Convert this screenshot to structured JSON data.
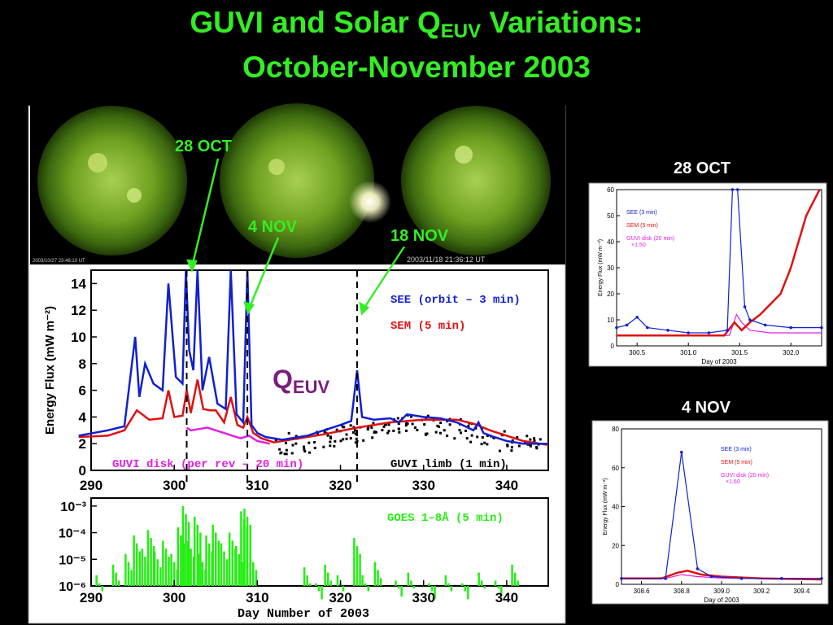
{
  "title": {
    "line1": "GUVI and Solar Q",
    "sub": "EUV",
    "line1_end": " Variations:",
    "line2": "October-November 2003"
  },
  "images": {
    "timestamp_1": "2003/10/27 23:48:10 UT",
    "timestamp_3": "2003/11/18 21:36:12 UT",
    "callouts": [
      "28 OCT",
      "4 NOV",
      "18 NOV"
    ]
  },
  "qeuv": {
    "main": "Q",
    "sub": "EUV"
  },
  "inset_labels": {
    "oct": "28 OCT",
    "nov": "4 NOV"
  },
  "colors": {
    "title": "#33ee22",
    "see": "#1020d0",
    "sem": "#e01010",
    "guvi_disk": "#e020e0",
    "guvi_limb": "#000000",
    "goes": "#22ee11"
  },
  "chart_data": [
    {
      "type": "line",
      "ylabel": "Energy Flux (mW m⁻²)",
      "xlim": [
        290,
        345
      ],
      "ylim": [
        0,
        15
      ],
      "xticks": [
        290,
        300,
        310,
        320,
        330,
        340
      ],
      "yticks": [
        0,
        2,
        4,
        6,
        8,
        10,
        12,
        14
      ],
      "vlines": [
        301.5,
        308.8,
        322.0
      ],
      "series": [
        {
          "name": "SEE (orbit – 3 min)",
          "x": [
            288.5,
            292,
            294,
            295.3,
            295.8,
            296.5,
            297.5,
            298.6,
            299.3,
            300.2,
            301,
            301.4,
            301.8,
            302.3,
            302.8,
            303.4,
            304.2,
            305.2,
            306.2,
            306.8,
            307.5,
            308.3,
            308.8,
            309.3,
            310,
            311,
            313,
            316,
            320,
            321.3,
            322,
            322.6,
            324,
            326,
            327,
            328,
            330,
            332,
            334,
            336,
            336.6,
            337.2,
            338.5,
            340,
            342,
            345
          ],
          "y": [
            2.6,
            3.0,
            3.3,
            10.0,
            5.5,
            8.0,
            6.5,
            6.0,
            14.0,
            7.0,
            6.5,
            15.0,
            9.0,
            7.5,
            15.0,
            6.0,
            8.5,
            5.0,
            4.6,
            15.0,
            4.2,
            3.6,
            15.0,
            3.4,
            2.8,
            2.5,
            2.3,
            2.6,
            3.4,
            3.7,
            7.5,
            4.0,
            3.8,
            3.9,
            3.6,
            4.2,
            4.0,
            3.9,
            3.6,
            3.0,
            3.6,
            2.8,
            2.5,
            2.2,
            2.0,
            2.0
          ]
        },
        {
          "name": "SEM (5 min)",
          "x": [
            288.5,
            292,
            294,
            295.5,
            297,
            298.6,
            299.3,
            300,
            301,
            301.5,
            302,
            302.8,
            303.5,
            304.3,
            305,
            306,
            306.8,
            307.6,
            308.3,
            308.8,
            309.5,
            310.5,
            312,
            314,
            318,
            322,
            326,
            330,
            334,
            336,
            338,
            340,
            342,
            345
          ],
          "y": [
            2.5,
            2.6,
            3.0,
            4.5,
            3.8,
            3.9,
            6.0,
            4.0,
            4.1,
            6.0,
            4.3,
            6.8,
            4.6,
            4.5,
            4.5,
            3.6,
            5.5,
            3.4,
            3.2,
            4.0,
            2.8,
            2.4,
            2.1,
            2.3,
            2.7,
            3.2,
            3.6,
            3.8,
            3.8,
            3.5,
            3.0,
            2.6,
            2.2,
            1.9
          ]
        },
        {
          "name": "GUVI disk (per rev – 20 min)",
          "x": [
            301.5,
            302,
            303,
            304,
            305,
            306,
            307,
            308,
            309,
            310,
            311.5
          ],
          "y": [
            3.2,
            3.0,
            3.1,
            3.2,
            3.0,
            2.8,
            2.6,
            2.4,
            2.6,
            2.2,
            2.0
          ]
        },
        {
          "name": "GUVI limb (1 min)",
          "x": [
            312,
            314,
            316,
            318,
            320,
            322,
            324,
            326,
            328,
            330,
            332,
            334,
            336,
            338,
            340,
            342,
            344
          ],
          "y": [
            2.0,
            2.1,
            2.2,
            2.4,
            2.7,
            3.0,
            3.2,
            3.4,
            3.5,
            3.5,
            3.4,
            3.2,
            2.8,
            2.5,
            2.2,
            2.0,
            1.9
          ]
        }
      ]
    },
    {
      "type": "line",
      "xlabel": "Day Number of 2003",
      "ylim_exp": [
        -6,
        -2.7
      ],
      "yticks": [
        "10⁻³",
        "10⁻⁴",
        "10⁻⁵",
        "10⁻⁶"
      ],
      "xticks": [
        290,
        300,
        310,
        320,
        330,
        340
      ],
      "series": [
        {
          "name": "GOES 1–8Å (5 min)",
          "x": [
            291,
            293,
            294.5,
            295.5,
            296.5,
            297.2,
            298,
            299,
            300,
            300.8,
            301.4,
            302,
            302.8,
            303.4,
            304.2,
            305,
            306,
            307,
            307.8,
            308.4,
            308.8,
            309.5,
            316,
            317.4,
            318.5,
            320,
            322,
            323,
            324.5,
            327,
            328.5,
            331,
            333,
            335,
            337,
            339,
            341
          ],
          "y": [
            -5.6,
            -5.2,
            -4.8,
            -4.1,
            -4.6,
            -3.9,
            -4.7,
            -4.3,
            -4.8,
            -3.8,
            -3.0,
            -4.3,
            -3.4,
            -4.8,
            -4.1,
            -3.7,
            -4.4,
            -4.0,
            -4.5,
            -3.2,
            -3.1,
            -4.8,
            -5.3,
            -5.9,
            -5.2,
            -5.6,
            -4.2,
            -5.6,
            -5.1,
            -5.8,
            -5.5,
            -5.9,
            -5.6,
            -5.9,
            -5.5,
            -5.8,
            -5.2
          ]
        }
      ]
    },
    {
      "type": "line",
      "title": "28 OCT",
      "ylabel": "Energy Flux (mW m⁻²)",
      "xlabel": "Day of 2003",
      "xlim": [
        300.3,
        302.3
      ],
      "ylim": [
        0,
        60
      ],
      "xticks": [
        "300.5",
        "301.0",
        "301.5",
        "302.0"
      ],
      "yticks": [
        0,
        10,
        20,
        30,
        40,
        50,
        60
      ],
      "series": [
        {
          "name": "SEE (3 min)",
          "x": [
            300.3,
            300.4,
            300.5,
            300.6,
            300.8,
            301.0,
            301.2,
            301.38,
            301.43,
            301.48,
            301.55,
            301.6,
            301.75,
            302.0,
            302.3
          ],
          "y": [
            7,
            8,
            11,
            7,
            6,
            5,
            5,
            6,
            60,
            60,
            15,
            10,
            8,
            7,
            7
          ]
        },
        {
          "name": "SEM (5 min)",
          "x": [
            300.3,
            300.6,
            301.0,
            301.35,
            301.45,
            301.52,
            301.6,
            301.7,
            301.9,
            302.0,
            302.15,
            302.28
          ],
          "y": [
            4,
            4,
            4,
            4,
            9,
            6,
            9,
            12,
            20,
            30,
            50,
            60
          ]
        },
        {
          "name": "GUVI disk (20 min) ×1.50",
          "x": [
            300.3,
            301.0,
            301.4,
            301.47,
            301.52,
            301.6,
            301.8,
            302.0,
            302.3
          ],
          "y": [
            4,
            4,
            4,
            12,
            9,
            6,
            5,
            5,
            5
          ]
        }
      ]
    },
    {
      "type": "line",
      "title": "4 NOV",
      "ylabel": "Energy Flux (mW m⁻²)",
      "xlabel": "Day of 2003",
      "xlim": [
        308.5,
        309.5
      ],
      "ylim": [
        0,
        80
      ],
      "xticks": [
        "308.6",
        "308.8",
        "309.0",
        "309.2",
        "309.4"
      ],
      "yticks": [
        0,
        20,
        40,
        60,
        80
      ],
      "series": [
        {
          "name": "SEE (3 min)",
          "x": [
            308.5,
            308.72,
            308.8,
            308.88,
            308.95,
            309.1,
            309.3,
            309.5
          ],
          "y": [
            3,
            3,
            68,
            8,
            4,
            3,
            3,
            3
          ]
        },
        {
          "name": "SEM (5 min)",
          "x": [
            308.5,
            308.7,
            308.78,
            308.83,
            308.9,
            309.0,
            309.2,
            309.5
          ],
          "y": [
            3,
            3,
            6,
            7,
            5,
            4,
            3,
            2.5
          ]
        },
        {
          "name": "GUVI disk (20 min) ×1.60",
          "x": [
            308.5,
            308.72,
            308.8,
            308.88,
            309.0,
            309.5
          ],
          "y": [
            3,
            3,
            5,
            4,
            3.2,
            3
          ]
        }
      ]
    }
  ],
  "legend_main": {
    "see": "SEE (orbit – 3 min)",
    "sem": "SEM (5 min)",
    "disk": "GUVI disk (per rev – 20 min)",
    "limb": "GUVI limb (1 min)",
    "goes": "GOES 1–8Å (5 min)"
  },
  "legend_inset1": {
    "see": "SEE (3 min)",
    "sem": "SEM (5 min)",
    "disk": "GUVI disk (20 min)",
    "scale": "×1.50"
  },
  "legend_inset2": {
    "see": "SEE (3 min)",
    "sem": "SEM (5 min)",
    "disk": "GUVI disk (20 min)",
    "scale": "×1.60"
  }
}
